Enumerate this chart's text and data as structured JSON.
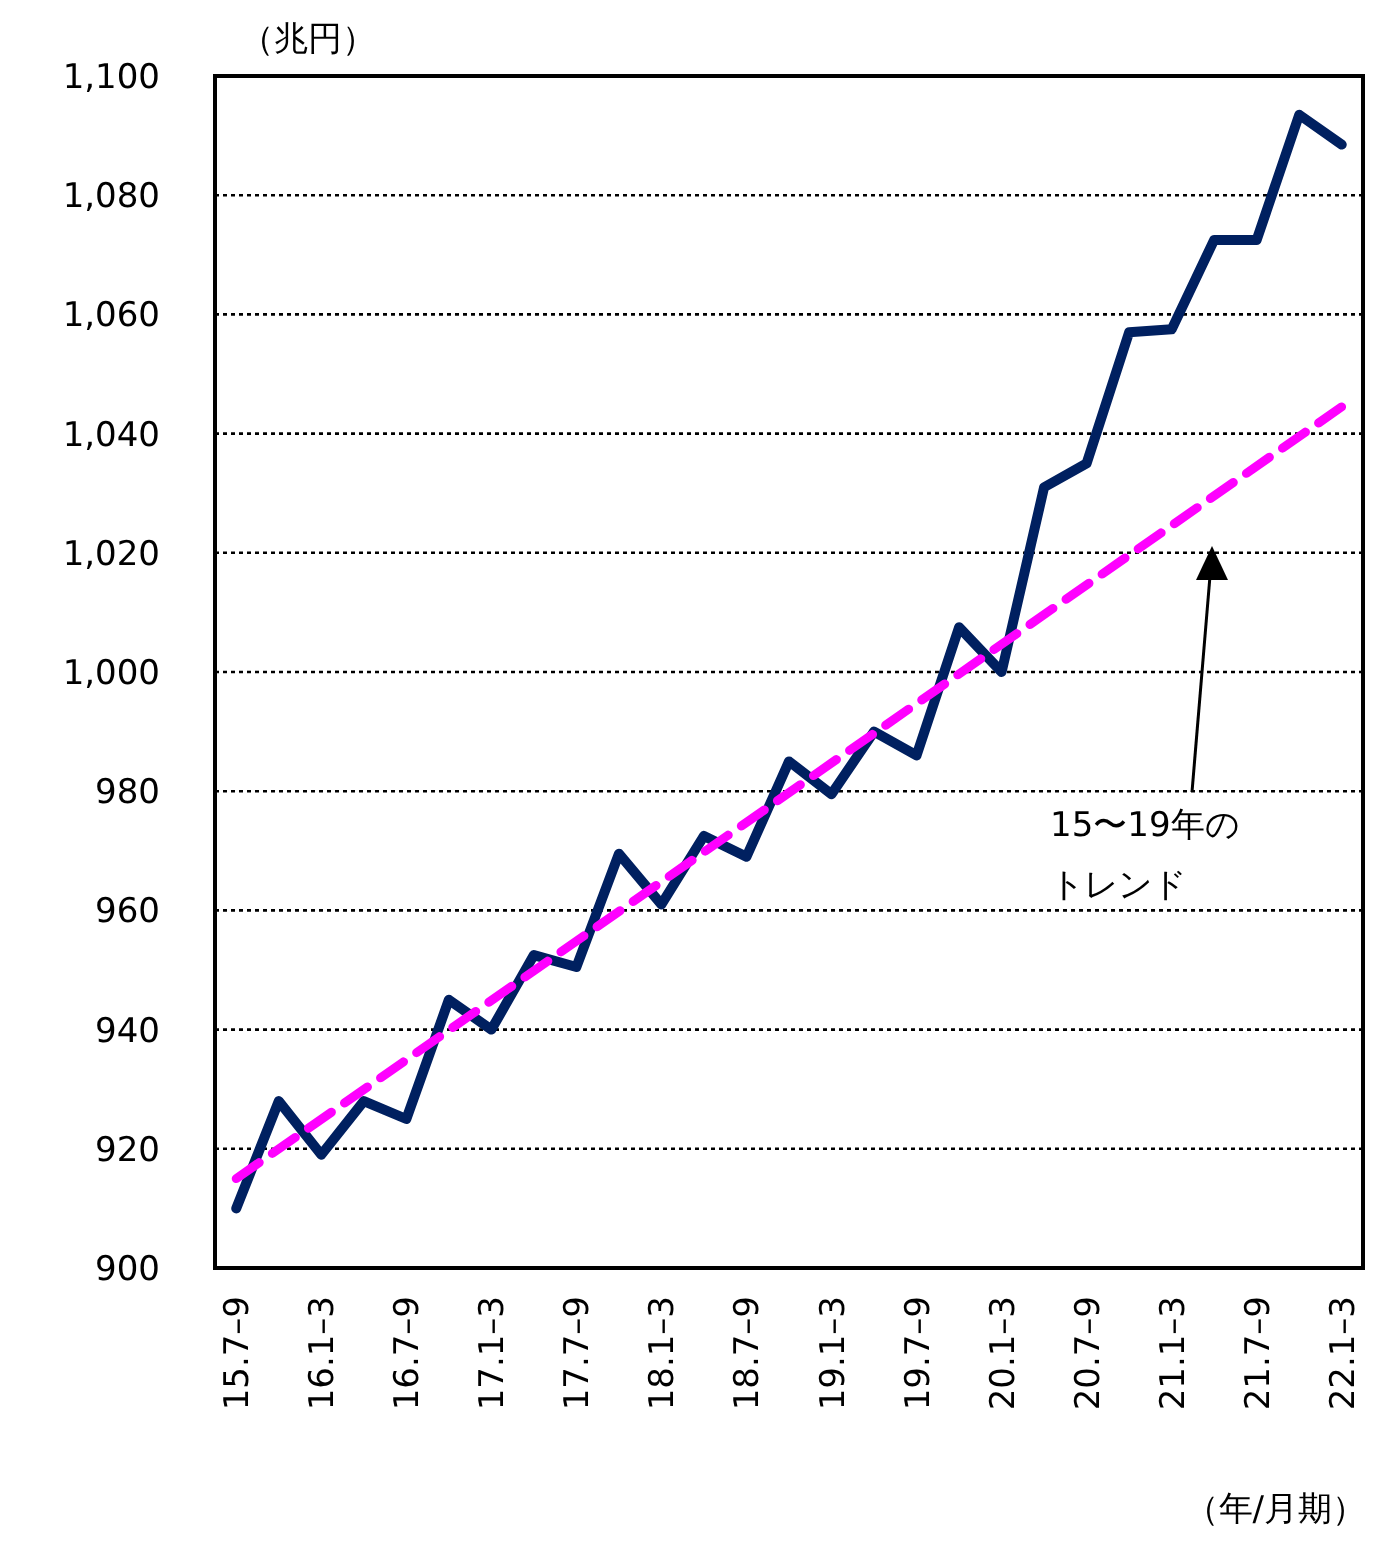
{
  "chart_data": {
    "type": "line",
    "ylabel": "（兆円）",
    "xlabel": "（年/月期）",
    "categories": [
      "15.7–9",
      null,
      "16.1–3",
      null,
      "16.7–9",
      null,
      "17.1–3",
      null,
      "17.7–9",
      null,
      "18.1–3",
      null,
      "18.7–9",
      null,
      "19.1–3",
      null,
      "19.7–9",
      null,
      "20.1–3",
      null,
      "20.7–9",
      null,
      "21.1–3",
      null,
      "21.7–9",
      null,
      "22.1–3"
    ],
    "series": [
      {
        "color": "#002060",
        "line_style": "solid",
        "values": [
          910,
          928,
          919,
          928,
          925,
          945,
          940,
          952.5,
          950.5,
          969.5,
          961,
          972.5,
          969,
          985,
          979.5,
          990,
          986,
          1007.5,
          1000,
          1031,
          1035,
          1057,
          1057.5,
          1072.5,
          1072.5,
          1093.5,
          1088.5
        ]
      },
      {
        "color": "#ff00ff",
        "line_style": "dashed",
        "x": [
          "15.7–9",
          "22.1–3"
        ],
        "values": [
          915,
          1044.5
        ]
      }
    ],
    "ylim": [
      900,
      1100
    ],
    "yticks": [
      900,
      920,
      940,
      960,
      980,
      {
        "value": 1000,
        "label": "1,000"
      },
      {
        "value": 1020,
        "label": "1,020"
      },
      {
        "value": 1040,
        "label": "1,040"
      },
      {
        "value": 1060,
        "label": "1,060"
      },
      {
        "value": 1080,
        "label": "1,080"
      },
      {
        "value": 1100,
        "label": "1,100"
      }
    ],
    "grid": "y",
    "marker": "none",
    "annotations": [
      "15〜19年の",
      "トレンド"
    ]
  }
}
